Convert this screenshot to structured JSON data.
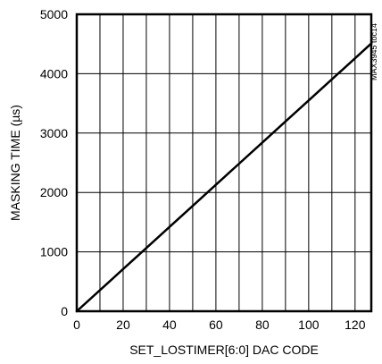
{
  "chart_data": {
    "type": "line",
    "title": "",
    "xlabel": "SET_LOSTIMER[6:0] DAC CODE",
    "ylabel": "MASKING TIME (µs)",
    "xlim": [
      0,
      127
    ],
    "ylim": [
      0,
      5000
    ],
    "x_ticks": [
      "0",
      "20",
      "40",
      "60",
      "80",
      "100",
      "120"
    ],
    "y_ticks": [
      "0",
      "1000",
      "2000",
      "3000",
      "4000",
      "5000"
    ],
    "grid": true,
    "legend": "none",
    "reference_label": "MAX3945 toc14",
    "series": [
      {
        "x": [
          0,
          10,
          20,
          30,
          40,
          50,
          60,
          70,
          80,
          90,
          100,
          110,
          120,
          127
        ],
        "y": [
          0,
          355,
          710,
          1065,
          1420,
          1775,
          2130,
          2485,
          2840,
          3195,
          3550,
          3905,
          4260,
          4510
        ]
      }
    ],
    "colors": {
      "line": "#000000",
      "grid": "#000000",
      "frame": "#000000"
    }
  }
}
